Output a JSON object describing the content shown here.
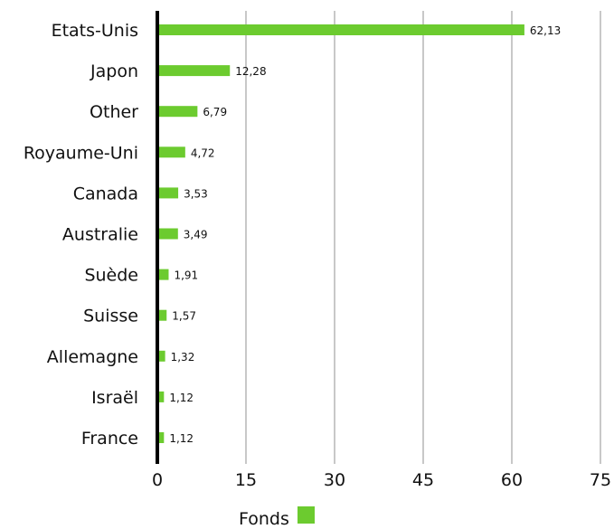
{
  "chart_data": {
    "type": "bar",
    "orientation": "horizontal",
    "title": "",
    "xlabel": "",
    "ylabel": "",
    "categories": [
      "Etats-Unis",
      "Japon",
      "Other",
      "Royaume-Uni",
      "Canada",
      "Australie",
      "Suède",
      "Suisse",
      "Allemagne",
      "Israël",
      "France"
    ],
    "series": [
      {
        "name": "Fonds",
        "values": [
          62.13,
          12.28,
          6.79,
          4.72,
          3.53,
          3.49,
          1.91,
          1.57,
          1.32,
          1.12,
          1.12
        ],
        "value_labels": [
          "62,13",
          "12,28",
          "6,79",
          "4,72",
          "3,53",
          "3,49",
          "1,91",
          "1,57",
          "1,32",
          "1,12",
          "1,12"
        ],
        "color": "#6ccb2f"
      }
    ],
    "xlim": [
      0,
      75
    ],
    "xticks": [
      0,
      15,
      30,
      45,
      60,
      75
    ],
    "xtick_labels": [
      "0",
      "15",
      "30",
      "45",
      "60",
      "75"
    ],
    "grid": "vertical",
    "gridline_color": "#c8c8c8",
    "axis_color": "#000000",
    "legend": {
      "position": "bottom-center",
      "label": "Fonds"
    }
  }
}
